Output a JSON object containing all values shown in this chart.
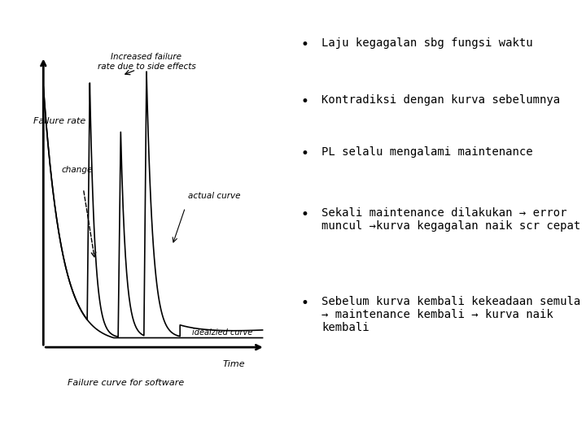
{
  "bg_color": "#ffffff",
  "bullet_points": [
    "Laju kegagalan sbg fungsi waktu",
    "Kontradiksi dengan kurva sebelumnya",
    "PL selalu mengalami maintenance",
    "Sekali maintenance dilakukan → error\nmuncul →kurva kegagalan naik scr cepat",
    "Sebelum kurva kembali kekeadaan semula\n→ maintenance kembali → kurva naik\nkembali"
  ],
  "label_failure_rate": "Failure rate",
  "label_time": "Time",
  "label_failure_curve": "Failure curve for software",
  "label_increased_failure": "Increased failure\nrate due to side effects",
  "label_change": "change",
  "label_actual_curve": "actual curve",
  "label_idealized_curve": "idealzied curve",
  "font_size_diagram": 8,
  "font_size_bullets": 10,
  "line_color": "#000000"
}
